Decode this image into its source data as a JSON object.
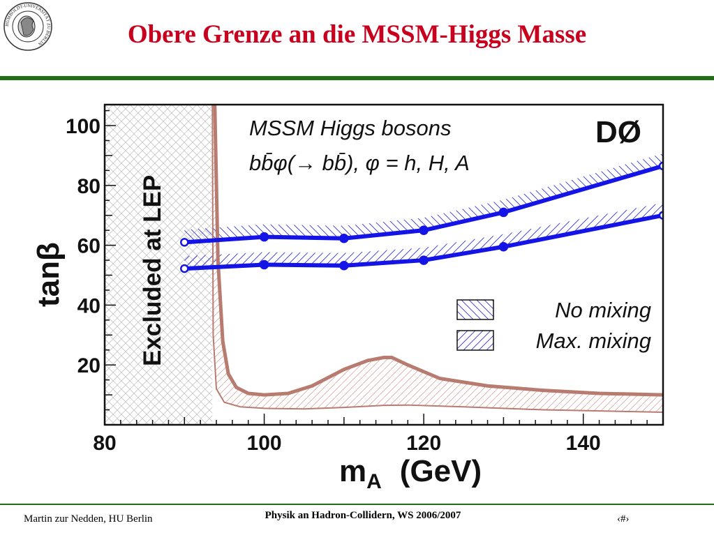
{
  "slide": {
    "title": "Obere Grenze an die MSSM-Higgs Masse",
    "footer_left": "Martin zur Nedden, HU Berlin",
    "footer_center": "Physik an Hadron-Collidern, WS 2006/2007",
    "footer_right": "‹#›",
    "seal_text": "HUMBOLDT-UNIVERSITÄT ZU BERLIN"
  },
  "chart_data": {
    "type": "line",
    "title_line1": "MSSM Higgs bosons",
    "title_line2": "bb̄φ(→ bb̄), φ = h, H, A",
    "experiment": "DØ",
    "xlabel_main": "m",
    "xlabel_sub": "A",
    "xlabel_unit": "(GeV)",
    "ylabel": "tanβ",
    "xlim": [
      80,
      150
    ],
    "ylim": [
      0,
      107
    ],
    "xticks": [
      80,
      100,
      120,
      140
    ],
    "yticks": [
      20,
      40,
      60,
      80,
      100
    ],
    "excluded_region_label": "Excluded at LEP",
    "excluded_region_xmax": 93.5,
    "series": [
      {
        "name": "No mixing",
        "color": "#1414e6",
        "x": [
          90,
          100,
          110,
          120,
          130,
          150
        ],
        "y": [
          61,
          62.8,
          62.3,
          65,
          71,
          86.5
        ]
      },
      {
        "name": "Max. mixing",
        "color": "#1414e6",
        "x": [
          90,
          100,
          110,
          120,
          130,
          150
        ],
        "y": [
          52.2,
          53.5,
          53.2,
          55,
          59.5,
          70
        ]
      }
    ],
    "theory_curves": [
      {
        "name": "upper-theory-bound",
        "color": "#b87b70",
        "x": [
          93.8,
          94.2,
          94.8,
          95.5,
          96.5,
          98,
          100,
          103,
          106,
          110,
          113,
          115,
          116,
          118,
          122,
          128,
          135,
          142,
          150
        ],
        "y": [
          107,
          55,
          28,
          17,
          12.5,
          10.5,
          10,
          10.5,
          13,
          18.5,
          21.5,
          22.5,
          22.5,
          20,
          15.5,
          13,
          11.5,
          10.5,
          10
        ]
      },
      {
        "name": "lower-theory-bound",
        "color": "#b87b70",
        "x": [
          93.5,
          93.6,
          94,
          95,
          97,
          100,
          105,
          110,
          115,
          118,
          125,
          135,
          150
        ],
        "y": [
          107,
          30,
          12,
          7.5,
          6,
          5.5,
          5.3,
          5.8,
          6.5,
          6.6,
          6,
          5,
          4.2
        ]
      }
    ]
  }
}
